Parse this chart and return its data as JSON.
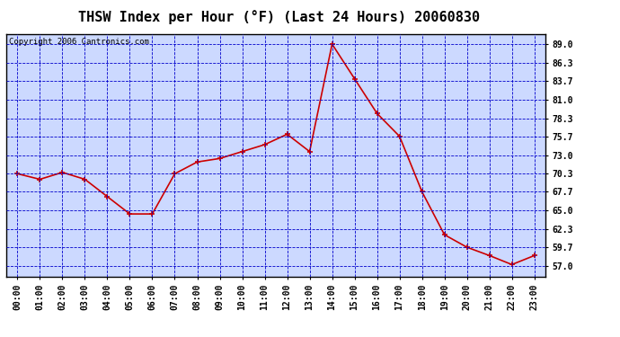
{
  "title": "THSW Index per Hour (°F) (Last 24 Hours) 20060830",
  "copyright": "Copyright 2006 Cantronics.com",
  "hours": [
    0,
    1,
    2,
    3,
    4,
    5,
    6,
    7,
    8,
    9,
    10,
    11,
    12,
    13,
    14,
    15,
    16,
    17,
    18,
    19,
    20,
    21,
    22,
    23
  ],
  "values": [
    70.3,
    69.5,
    70.5,
    69.5,
    67.0,
    64.5,
    64.5,
    70.3,
    72.0,
    72.5,
    73.5,
    74.5,
    76.0,
    73.5,
    89.0,
    84.0,
    79.0,
    75.7,
    67.7,
    61.5,
    59.7,
    58.5,
    57.2,
    58.5
  ],
  "yticks": [
    57.0,
    59.7,
    62.3,
    65.0,
    67.7,
    70.3,
    73.0,
    75.7,
    78.3,
    81.0,
    83.7,
    86.3,
    89.0
  ],
  "ylim": [
    55.5,
    90.5
  ],
  "line_color": "#cc0000",
  "marker_color": "#cc0000",
  "bg_color": "#ffffff",
  "plot_bg": "#ccd9ff",
  "grid_color": "#0000cc",
  "title_color": "#000000",
  "border_color": "#000000",
  "copyright_color": "#000000",
  "title_fontsize": 11,
  "copyright_fontsize": 6.5,
  "tick_fontsize": 7,
  "figwidth": 6.9,
  "figheight": 3.75,
  "dpi": 100
}
